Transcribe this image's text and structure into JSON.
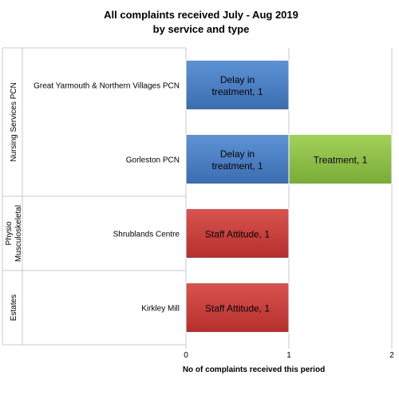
{
  "chart_data": {
    "type": "bar",
    "orientation": "horizontal",
    "stacked": true,
    "title": [
      "All complaints received July - Aug 2019",
      "by service and type"
    ],
    "xlabel": "No of complaints received this period",
    "xlim": [
      0,
      2
    ],
    "xticks": [
      "0",
      "1",
      "2"
    ],
    "grid": true,
    "legend": "none",
    "groups": [
      {
        "label": "Nursing Services PCN",
        "categories": [
          "Great Yarmouth & Northern Villages PCN",
          "Gorleston PCN"
        ]
      },
      {
        "label": "Physio Musculoskeletal",
        "label_lines": [
          "Physio",
          "Musculoskeletal"
        ],
        "categories": [
          "Shrublands Centre"
        ]
      },
      {
        "label": "Estates",
        "categories": [
          "Kirkley Mill"
        ]
      }
    ],
    "categories": [
      "Great Yarmouth & Northern Villages PCN",
      "Gorleston PCN",
      "Shrublands Centre",
      "Kirkley Mill"
    ],
    "segments": [
      {
        "category": "Great Yarmouth & Northern Villages PCN",
        "type": "Delay in treatment",
        "value": 1,
        "label_lines": [
          "Delay in",
          "treatment, 1"
        ],
        "color": "#4a7ebb"
      },
      {
        "category": "Gorleston PCN",
        "type": "Delay in treatment",
        "value": 1,
        "label_lines": [
          "Delay in",
          "treatment, 1"
        ],
        "color": "#4a7ebb"
      },
      {
        "category": "Gorleston PCN",
        "type": "Treatment",
        "value": 1,
        "label_lines": [
          "Treatment, 1"
        ],
        "color": "#8cbd47"
      },
      {
        "category": "Shrublands Centre",
        "type": "Staff Attitude",
        "value": 1,
        "label_lines": [
          "Staff Attitude, 1"
        ],
        "color": "#c9413f"
      },
      {
        "category": "Kirkley Mill",
        "type": "Staff Attitude",
        "value": 1,
        "label_lines": [
          "Staff Attitude, 1"
        ],
        "color": "#c9413f"
      }
    ]
  }
}
